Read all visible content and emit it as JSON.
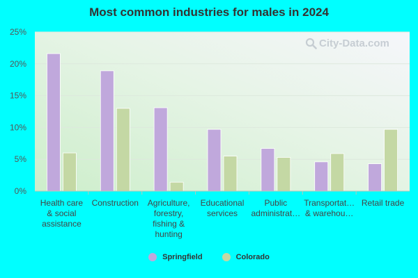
{
  "chart_data": {
    "type": "bar",
    "title": "Most common industries for males in 2024",
    "categories": [
      [
        "Health care",
        "& social",
        "assistance"
      ],
      [
        "Construction"
      ],
      [
        "Agriculture,",
        "forestry,",
        "fishing &",
        "hunting"
      ],
      [
        "Educational",
        "services"
      ],
      [
        "Public",
        "administrat…"
      ],
      [
        "Transportat…",
        "& warehou…"
      ],
      [
        "Retail trade"
      ]
    ],
    "series": [
      {
        "name": "Springfield",
        "color": "#c0a8dc",
        "values": [
          21.6,
          18.9,
          13.1,
          9.7,
          6.7,
          4.6,
          4.3
        ]
      },
      {
        "name": "Colorado",
        "color": "#c4d8a4",
        "values": [
          6.0,
          13.0,
          1.4,
          5.5,
          5.3,
          5.9,
          9.7
        ]
      }
    ],
    "ylim": [
      0,
      25
    ],
    "yticks": [
      "0%",
      "5%",
      "10%",
      "15%",
      "20%",
      "25%"
    ],
    "ytick_values": [
      0,
      5,
      10,
      15,
      20,
      25
    ],
    "grid": true,
    "legend": "bottom-center",
    "watermark": "City-Data.com"
  }
}
